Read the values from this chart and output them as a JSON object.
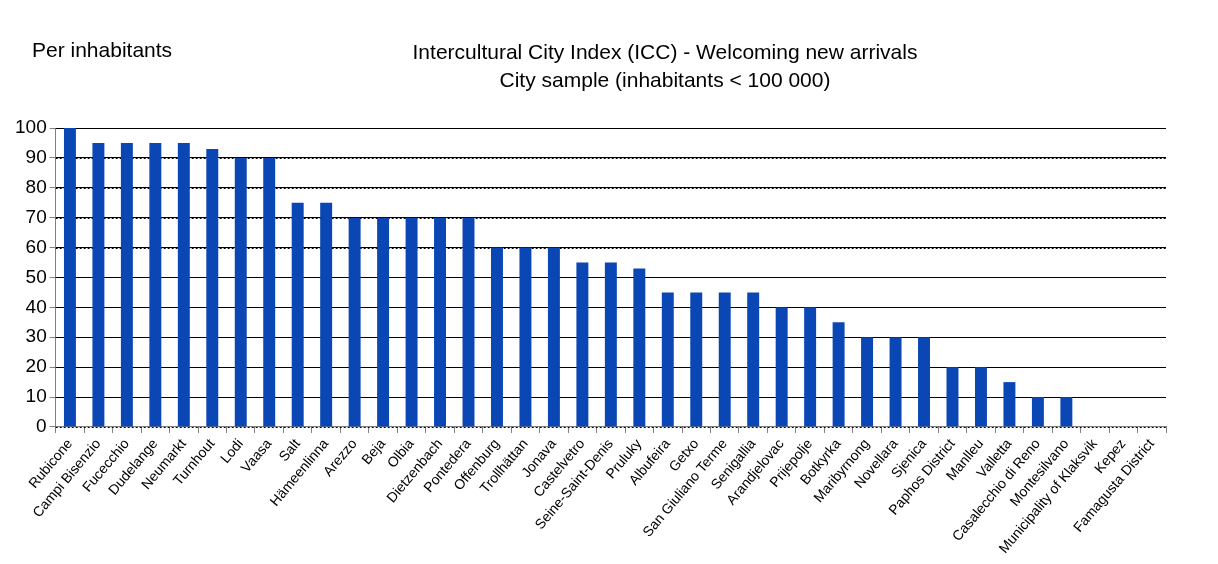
{
  "chart_data": {
    "type": "bar",
    "title": "Intercultural City Index (ICC) - Welcoming new arrivals",
    "subtitle": "City sample (inhabitants < 100 000)",
    "annotations": [
      "Per inhabitants"
    ],
    "categories": [
      "Rubicone",
      "Campi Bisenzio",
      "Fucecchio",
      "Dudelange",
      "Neumarkt",
      "Turnhout",
      "Lodi",
      "Vaasa",
      "Salt",
      "Hämeenlinna",
      "Arezzo",
      "Beja",
      "Olbia",
      "Dietzenbach",
      "Pontedera",
      "Offenburg",
      "Trollhättan",
      "Jonava",
      "Castelvetro",
      "Seine-Saint-Denis",
      "Pruluky",
      "Albufeira",
      "Getxo",
      "San Giuliano Terme",
      "Senigallia",
      "Arandjelovac",
      "Prijepolje",
      "Botkyrka",
      "Maribyrnong",
      "Novellara",
      "Sjenica",
      "Paphos District",
      "Manlleu",
      "Valletta",
      "Casalecchio di Reno",
      "Montesilvano",
      "Municipality of Klaksvik",
      "Kepez",
      "Famagusta District"
    ],
    "values": [
      100,
      95,
      95,
      95,
      95,
      93,
      90,
      90,
      75,
      75,
      70,
      70,
      70,
      70,
      70,
      60,
      60,
      60,
      55,
      55,
      53,
      45,
      45,
      45,
      45,
      40,
      40,
      35,
      30,
      30,
      30,
      20,
      20,
      15,
      10,
      10,
      0,
      0,
      0
    ],
    "color": "#0a46b4",
    "ylim": [
      0,
      100
    ],
    "yticks": [
      0,
      10,
      20,
      30,
      40,
      50,
      60,
      70,
      80,
      90,
      100
    ],
    "grid": "y",
    "legend": false
  }
}
